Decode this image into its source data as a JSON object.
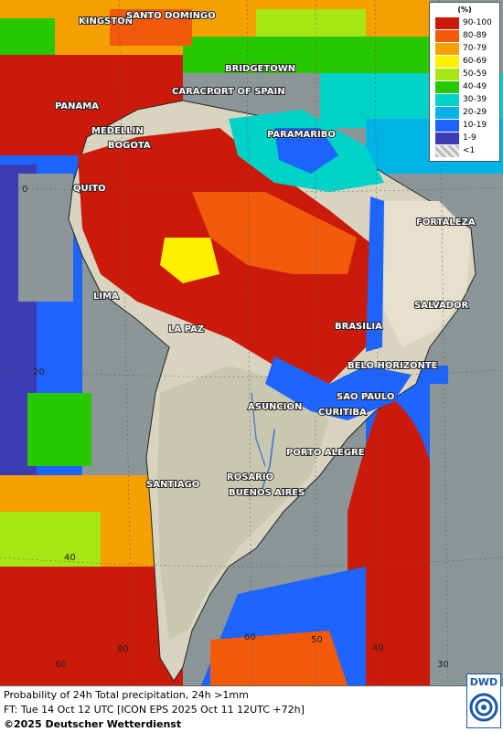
{
  "legend": {
    "title": "(%)",
    "classes": [
      {
        "label": "90-100",
        "color": "#cc1a0a"
      },
      {
        "label": "80-89",
        "color": "#f05a0a"
      },
      {
        "label": "70-79",
        "color": "#f5a000"
      },
      {
        "label": "60-69",
        "color": "#ffef00"
      },
      {
        "label": "50-59",
        "color": "#a6e614"
      },
      {
        "label": "40-49",
        "color": "#28c800"
      },
      {
        "label": "30-39",
        "color": "#00d2c8"
      },
      {
        "label": "20-29",
        "color": "#00b4e6"
      },
      {
        "label": "10-19",
        "color": "#1e64ff"
      },
      {
        "label": "1-9",
        "color": "#3c3cb4"
      },
      {
        "label": "<1",
        "color": "#d0d0d0"
      }
    ]
  },
  "cities": {
    "kingston": "KINGSTON",
    "santo_domingo": "SANTO DOMINGO",
    "bridgetown": "BRIDGETOWN",
    "caracas": "CARACAS",
    "port_of_spain": "PORT OF SPAIN",
    "panama": "PANAMA",
    "medellin": "MEDELLIN",
    "bogota": "BOGOTA",
    "paramaribo": "PARAMARIBO",
    "quito": "QUITO",
    "fortaleza": "FORTALEZA",
    "lima": "LIMA",
    "salvador": "SALVADOR",
    "la_paz": "LA PAZ",
    "brasilia": "BRASILIA",
    "belo_horizonte": "BELO HORIZONTE",
    "sao_paulo": "SAO PAULO",
    "asuncion": "ASUNCION",
    "curitiba": "CURITIBA",
    "porto_alegre": "PORTO ALEGRE",
    "rosario": "ROSARIO",
    "buenos_aires": "BUENOS AIRES",
    "santiago": "SANTIAGO"
  },
  "grid_labels": {
    "lat_0": "0",
    "lat_20": "20",
    "lat_40": "40",
    "lat_60_left": "60",
    "lon_80": "80",
    "lon_60": "60",
    "lon_50": "50",
    "lon_40": "40",
    "lon_30": "30"
  },
  "footer": {
    "line1": "Probability of 24h Total precipitation, 24h >1mm",
    "line2": "FT: Tue 14 Oct 12 UTC [ICON EPS 2025 Oct 11 12UTC +72h]",
    "line3": "©2025 Deutscher Wetterdienst"
  },
  "logo": {
    "text": "DWD"
  }
}
